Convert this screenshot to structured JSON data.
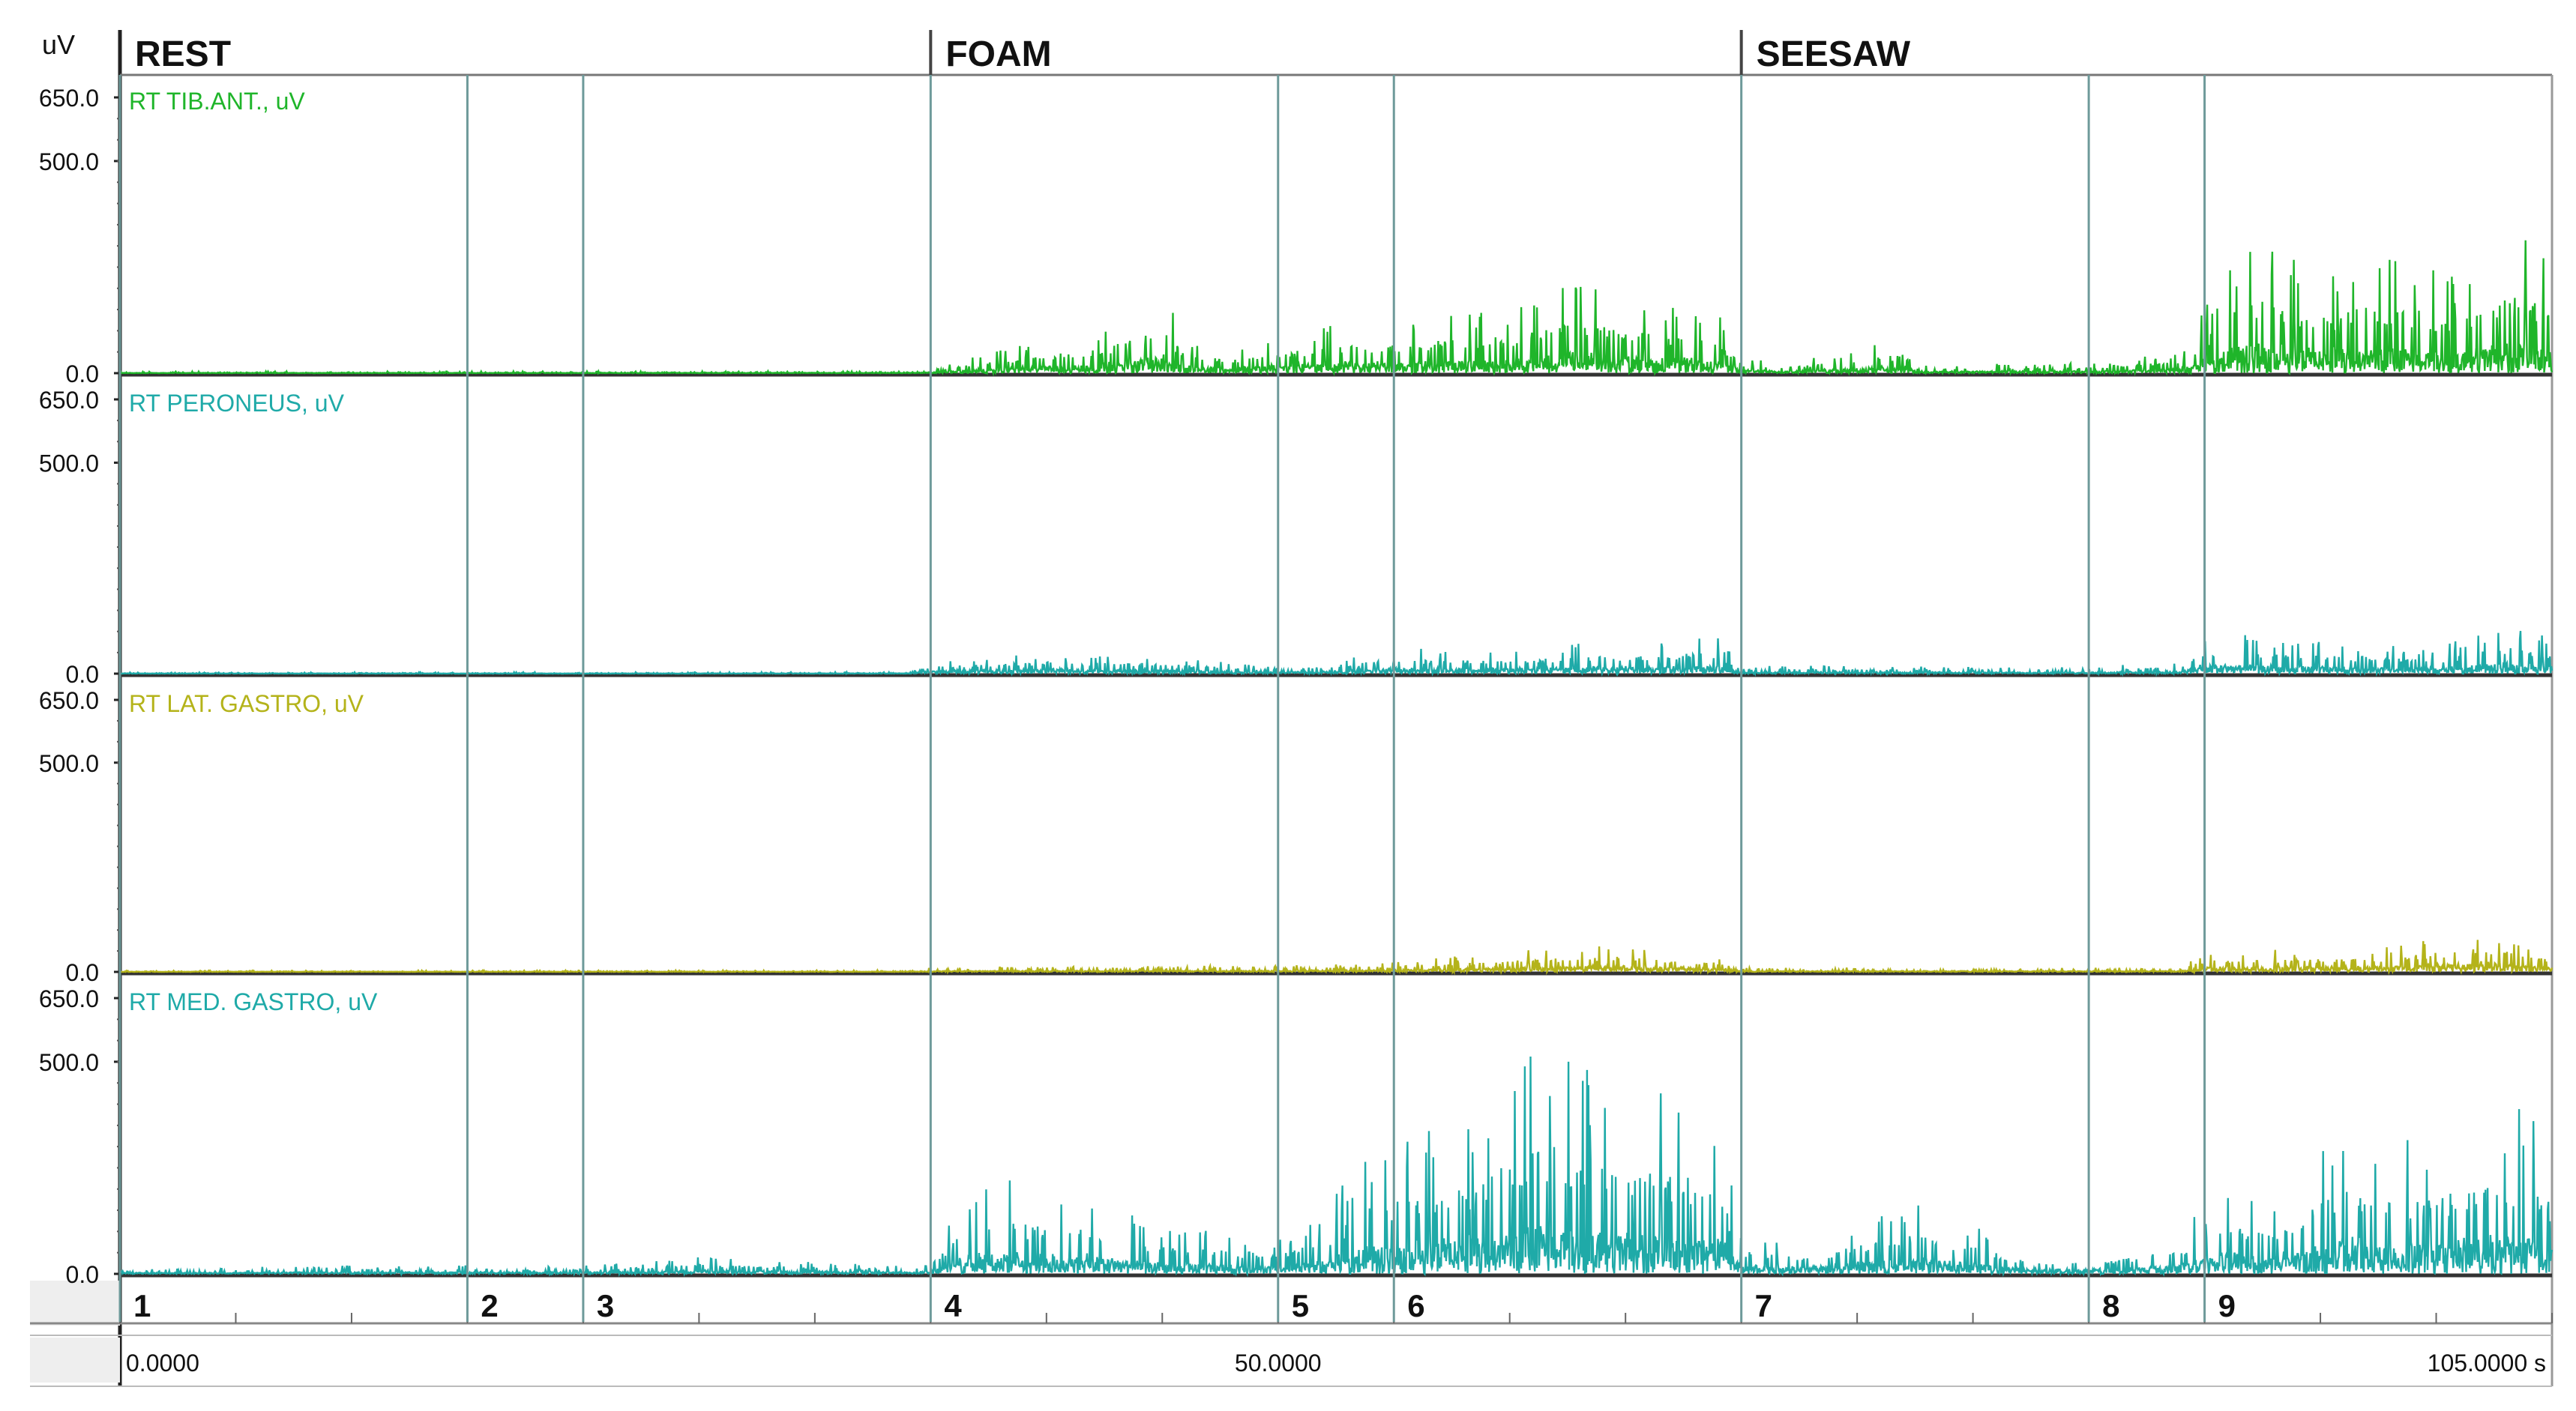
{
  "unit_label": "uV",
  "time_unit": "s",
  "chart_data": {
    "type": "line",
    "title": "",
    "segments": [
      {
        "label": "REST",
        "start": 0
      },
      {
        "label": "FOAM",
        "start": 35
      },
      {
        "label": "SEESAW",
        "start": 70
      }
    ],
    "markers": [
      {
        "label": "1",
        "t": 0
      },
      {
        "label": "2",
        "t": 15
      },
      {
        "label": "3",
        "t": 20
      },
      {
        "label": "4",
        "t": 35
      },
      {
        "label": "5",
        "t": 50
      },
      {
        "label": "6",
        "t": 55
      },
      {
        "label": "7",
        "t": 70
      },
      {
        "label": "8",
        "t": 85
      },
      {
        "label": "9",
        "t": 90
      }
    ],
    "x_ticks": [
      "0.0000",
      "50.0000",
      "105.0000 s"
    ],
    "x_tick_values": [
      0,
      50,
      105
    ],
    "xlim": [
      0,
      105
    ],
    "ylim": [
      0,
      650
    ],
    "y_ticks": [
      "650.0",
      "500.0",
      "0.0"
    ],
    "y_tick_values": [
      650,
      500,
      0
    ],
    "grid": "vertical marker lines",
    "series": [
      {
        "name": "RT TIB.ANT., uV",
        "color": "#1fb52a",
        "envelope": [
          {
            "t": 0,
            "v": 4
          },
          {
            "t": 34,
            "v": 5
          },
          {
            "t": 35,
            "v": 10
          },
          {
            "t": 37,
            "v": 40
          },
          {
            "t": 39,
            "v": 70
          },
          {
            "t": 42,
            "v": 100
          },
          {
            "t": 44,
            "v": 150
          },
          {
            "t": 45,
            "v": 200
          },
          {
            "t": 46,
            "v": 80
          },
          {
            "t": 48,
            "v": 60
          },
          {
            "t": 50,
            "v": 90
          },
          {
            "t": 53,
            "v": 120
          },
          {
            "t": 57,
            "v": 140
          },
          {
            "t": 60,
            "v": 160
          },
          {
            "t": 63,
            "v": 220
          },
          {
            "t": 66,
            "v": 170
          },
          {
            "t": 69,
            "v": 150
          },
          {
            "t": 70,
            "v": 40
          },
          {
            "t": 72,
            "v": 25
          },
          {
            "t": 77,
            "v": 80
          },
          {
            "t": 78,
            "v": 20
          },
          {
            "t": 85,
            "v": 25
          },
          {
            "t": 89,
            "v": 50
          },
          {
            "t": 91,
            "v": 250
          },
          {
            "t": 92,
            "v": 340
          },
          {
            "t": 95,
            "v": 250
          },
          {
            "t": 98,
            "v": 300
          },
          {
            "t": 101,
            "v": 230
          },
          {
            "t": 103,
            "v": 350
          },
          {
            "t": 105,
            "v": 300
          }
        ]
      },
      {
        "name": "RT PERONEUS, uV",
        "color": "#1faaa8",
        "envelope": [
          {
            "t": 0,
            "v": 3
          },
          {
            "t": 34,
            "v": 4
          },
          {
            "t": 35,
            "v": 30
          },
          {
            "t": 40,
            "v": 50
          },
          {
            "t": 45,
            "v": 45
          },
          {
            "t": 48,
            "v": 25
          },
          {
            "t": 50,
            "v": 15
          },
          {
            "t": 55,
            "v": 60
          },
          {
            "t": 60,
            "v": 60
          },
          {
            "t": 65,
            "v": 80
          },
          {
            "t": 69,
            "v": 90
          },
          {
            "t": 70,
            "v": 20
          },
          {
            "t": 85,
            "v": 15
          },
          {
            "t": 89,
            "v": 30
          },
          {
            "t": 90,
            "v": 100
          },
          {
            "t": 95,
            "v": 80
          },
          {
            "t": 100,
            "v": 60
          },
          {
            "t": 103,
            "v": 120
          },
          {
            "t": 105,
            "v": 90
          }
        ]
      },
      {
        "name": "RT LAT. GASTRO, uV",
        "color": "#b4b31a",
        "envelope": [
          {
            "t": 0,
            "v": 3
          },
          {
            "t": 34,
            "v": 4
          },
          {
            "t": 35,
            "v": 12
          },
          {
            "t": 50,
            "v": 15
          },
          {
            "t": 55,
            "v": 25
          },
          {
            "t": 62,
            "v": 60
          },
          {
            "t": 65,
            "v": 70
          },
          {
            "t": 69,
            "v": 40
          },
          {
            "t": 70,
            "v": 10
          },
          {
            "t": 89,
            "v": 12
          },
          {
            "t": 90,
            "v": 50
          },
          {
            "t": 98,
            "v": 60
          },
          {
            "t": 102,
            "v": 110
          },
          {
            "t": 105,
            "v": 50
          }
        ]
      },
      {
        "name": "RT MED. GASTRO, uV",
        "color": "#1faaa8",
        "envelope": [
          {
            "t": 0,
            "v": 12
          },
          {
            "t": 10,
            "v": 20
          },
          {
            "t": 20,
            "v": 20
          },
          {
            "t": 25,
            "v": 40
          },
          {
            "t": 34,
            "v": 20
          },
          {
            "t": 35,
            "v": 40
          },
          {
            "t": 37,
            "v": 240
          },
          {
            "t": 40,
            "v": 200
          },
          {
            "t": 42,
            "v": 200
          },
          {
            "t": 44,
            "v": 130
          },
          {
            "t": 48,
            "v": 100
          },
          {
            "t": 50,
            "v": 80
          },
          {
            "t": 52,
            "v": 150
          },
          {
            "t": 54,
            "v": 300
          },
          {
            "t": 56,
            "v": 350
          },
          {
            "t": 59,
            "v": 400
          },
          {
            "t": 61,
            "v": 580
          },
          {
            "t": 64,
            "v": 480
          },
          {
            "t": 67,
            "v": 440
          },
          {
            "t": 69,
            "v": 400
          },
          {
            "t": 70,
            "v": 100
          },
          {
            "t": 73,
            "v": 80
          },
          {
            "t": 78,
            "v": 180
          },
          {
            "t": 82,
            "v": 60
          },
          {
            "t": 85,
            "v": 50
          },
          {
            "t": 89,
            "v": 100
          },
          {
            "t": 90,
            "v": 220
          },
          {
            "t": 93,
            "v": 200
          },
          {
            "t": 96,
            "v": 360
          },
          {
            "t": 99,
            "v": 320
          },
          {
            "t": 102,
            "v": 380
          },
          {
            "t": 104,
            "v": 400
          },
          {
            "t": 105,
            "v": 300
          }
        ]
      }
    ]
  }
}
